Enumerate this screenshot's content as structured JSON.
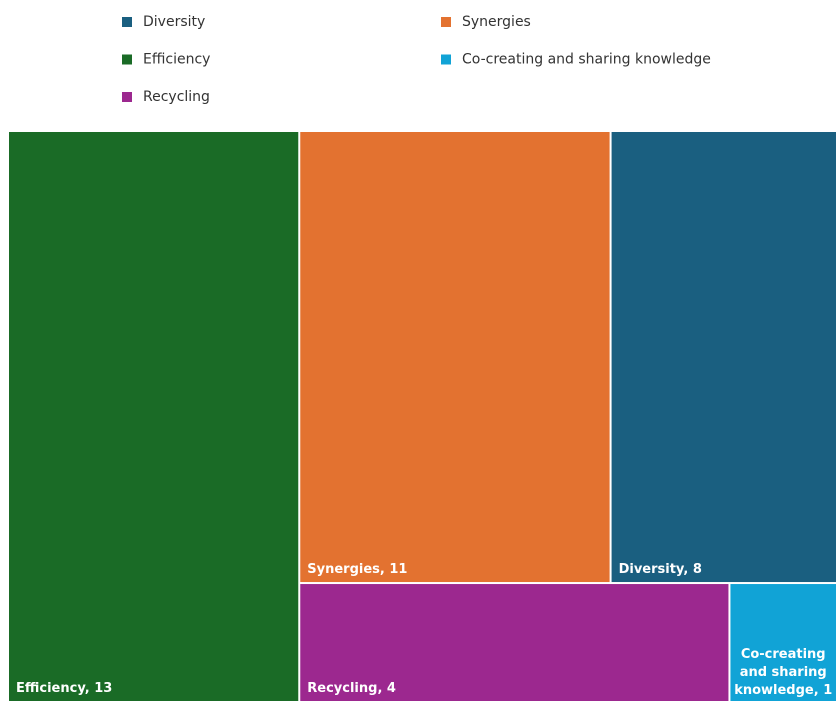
{
  "chart_data": {
    "type": "treemap",
    "categories": [
      "Efficiency",
      "Synergies",
      "Diversity",
      "Recycling",
      "Co-creating and sharing knowledge"
    ],
    "values": [
      13,
      11,
      8,
      4,
      1
    ],
    "value_labels": [
      "Efficiency, 13",
      "Synergies, 11",
      "Diversity, 8",
      "Recycling, 4",
      "Co-creating and sharing knowledge, 1"
    ],
    "colors": [
      "#1a6b26",
      "#e37230",
      "#1a5f80",
      "#9c288f",
      "#11a3d6"
    ],
    "legend_order": [
      2,
      1,
      0,
      4,
      3
    ],
    "legend": "top"
  }
}
